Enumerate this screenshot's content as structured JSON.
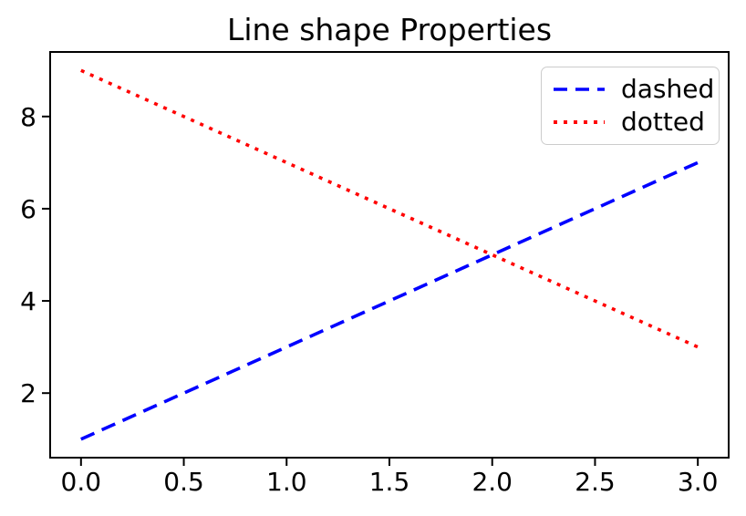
{
  "figure": {
    "background": "#ffffff"
  },
  "chart_data": {
    "type": "line",
    "title": "Line shape Properties",
    "xlabel": "",
    "ylabel": "",
    "x": [
      0,
      1,
      2,
      3
    ],
    "series": [
      {
        "name": "dashed",
        "color": "#0000ff",
        "linestyle": "dashed",
        "values": [
          1,
          3,
          5,
          7
        ]
      },
      {
        "name": "dotted",
        "color": "#ff0000",
        "linestyle": "dotted",
        "values": [
          9,
          7,
          5,
          3
        ]
      }
    ],
    "xlim": [
      -0.15,
      3.15
    ],
    "ylim": [
      0.6,
      9.4
    ],
    "xticks": {
      "values": [
        0.0,
        0.5,
        1.0,
        1.5,
        2.0,
        2.5,
        3.0
      ],
      "labels": [
        "0.0",
        "0.5",
        "1.0",
        "1.5",
        "2.0",
        "2.5",
        "3.0"
      ]
    },
    "yticks": {
      "values": [
        2,
        4,
        6,
        8
      ],
      "labels": [
        "2",
        "4",
        "6",
        "8"
      ]
    },
    "grid": false,
    "legend": {
      "position": "upper right",
      "frame": true,
      "entries": [
        "dashed",
        "dotted"
      ]
    },
    "axes_color": "#000000",
    "text_color": "#000000",
    "legend_border_color": "#cccccc"
  }
}
